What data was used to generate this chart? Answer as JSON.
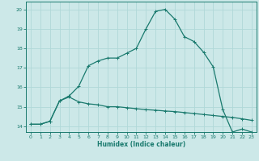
{
  "title": "",
  "xlabel": "Humidex (Indice chaleur)",
  "bg_color": "#cce8e8",
  "grid_color": "#b0d8d8",
  "line_color": "#1a7a6e",
  "xlim": [
    -0.5,
    23.5
  ],
  "ylim": [
    13.7,
    20.4
  ],
  "yticks": [
    14,
    15,
    16,
    17,
    18,
    19,
    20
  ],
  "xticks": [
    0,
    1,
    2,
    3,
    4,
    5,
    6,
    7,
    8,
    9,
    10,
    11,
    12,
    13,
    14,
    15,
    16,
    17,
    18,
    19,
    20,
    21,
    22,
    23
  ],
  "line1_x": [
    0,
    1,
    2,
    3,
    4,
    5,
    6,
    7,
    8,
    9,
    10,
    11,
    12,
    13,
    14,
    15,
    16,
    17,
    18,
    19,
    20,
    21,
    22,
    23
  ],
  "line1_y": [
    14.1,
    14.1,
    14.25,
    15.3,
    15.5,
    15.25,
    15.15,
    15.1,
    15.0,
    15.0,
    14.95,
    14.9,
    14.85,
    14.82,
    14.78,
    14.75,
    14.7,
    14.65,
    14.6,
    14.55,
    14.5,
    14.45,
    14.38,
    14.3
  ],
  "line2_x": [
    0,
    1,
    2,
    3,
    4,
    5,
    6,
    7,
    8,
    9,
    10,
    11,
    12,
    13,
    14,
    15,
    16,
    17,
    18,
    19,
    20,
    21,
    22,
    23
  ],
  "line2_y": [
    14.1,
    14.1,
    14.25,
    15.3,
    15.55,
    16.05,
    17.1,
    17.35,
    17.5,
    17.5,
    17.75,
    18.0,
    19.0,
    19.9,
    20.0,
    19.5,
    18.6,
    18.35,
    17.8,
    17.05,
    14.85,
    13.7,
    13.85,
    13.7
  ]
}
